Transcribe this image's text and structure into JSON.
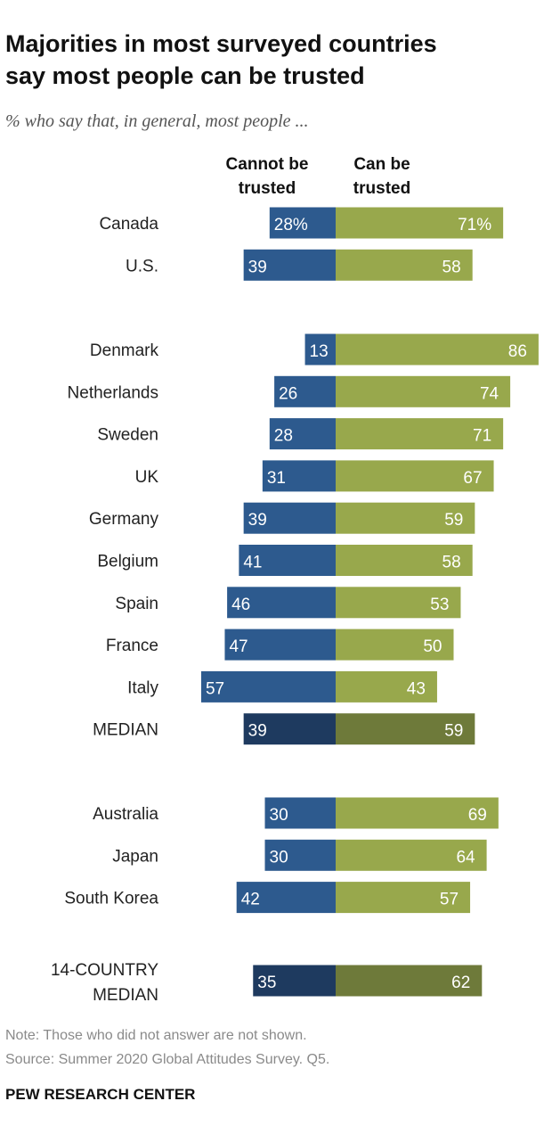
{
  "chart_data": {
    "type": "bar",
    "title": "Majorities in most surveyed countries say most people can be trusted",
    "subtitle": "% who say that, in general, most people ...",
    "column_headers": {
      "cannot": [
        "Cannot be",
        "trusted"
      ],
      "can": [
        "Can be",
        "trusted"
      ]
    },
    "series": [
      {
        "key": "cannot",
        "name": "Cannot be trusted"
      },
      {
        "key": "can",
        "name": "Can be trusted"
      }
    ],
    "groups": [
      {
        "rows": [
          {
            "label": "Canada",
            "cannot": 28,
            "can": 71,
            "cannot_text": "28%",
            "can_text": "71%"
          },
          {
            "label": "U.S.",
            "cannot": 39,
            "can": 58,
            "cannot_text": "39",
            "can_text": "58"
          }
        ]
      },
      {
        "rows": [
          {
            "label": "Denmark",
            "cannot": 13,
            "can": 86,
            "cannot_text": "13",
            "can_text": "86"
          },
          {
            "label": "Netherlands",
            "cannot": 26,
            "can": 74,
            "cannot_text": "26",
            "can_text": "74"
          },
          {
            "label": "Sweden",
            "cannot": 28,
            "can": 71,
            "cannot_text": "28",
            "can_text": "71"
          },
          {
            "label": "UK",
            "cannot": 31,
            "can": 67,
            "cannot_text": "31",
            "can_text": "67"
          },
          {
            "label": "Germany",
            "cannot": 39,
            "can": 59,
            "cannot_text": "39",
            "can_text": "59"
          },
          {
            "label": "Belgium",
            "cannot": 41,
            "can": 58,
            "cannot_text": "41",
            "can_text": "58"
          },
          {
            "label": "Spain",
            "cannot": 46,
            "can": 53,
            "cannot_text": "46",
            "can_text": "53"
          },
          {
            "label": "France",
            "cannot": 47,
            "can": 50,
            "cannot_text": "47",
            "can_text": "50"
          },
          {
            "label": "Italy",
            "cannot": 57,
            "can": 43,
            "cannot_text": "57",
            "can_text": "43"
          },
          {
            "label": "MEDIAN",
            "cannot": 39,
            "can": 59,
            "cannot_text": "39",
            "can_text": "59",
            "median": true
          }
        ]
      },
      {
        "rows": [
          {
            "label": "Australia",
            "cannot": 30,
            "can": 69,
            "cannot_text": "30",
            "can_text": "69"
          },
          {
            "label": "Japan",
            "cannot": 30,
            "can": 64,
            "cannot_text": "30",
            "can_text": "64"
          },
          {
            "label": "South Korea",
            "cannot": 42,
            "can": 57,
            "cannot_text": "42",
            "can_text": "57"
          }
        ]
      },
      {
        "rows": [
          {
            "label": "14-COUNTRY MEDIAN",
            "label_lines": [
              "14-COUNTRY",
              "MEDIAN"
            ],
            "cannot": 35,
            "can": 62,
            "cannot_text": "35",
            "can_text": "62",
            "median": true
          }
        ]
      }
    ],
    "colors": {
      "cannot": "#2d5a8e",
      "can": "#98a84c",
      "cannot_median": "#1e3a5f",
      "can_median": "#6e7a3a",
      "bar_text": "#ffffff",
      "label_text": "#222222",
      "title_text": "#111111",
      "note_text": "#8a8a8a"
    }
  },
  "notes": {
    "note": "Note: Those who did not answer are not shown.",
    "source": "Source: Summer 2020 Global Attitudes Survey. Q5."
  },
  "brand": "PEW RESEARCH CENTER"
}
